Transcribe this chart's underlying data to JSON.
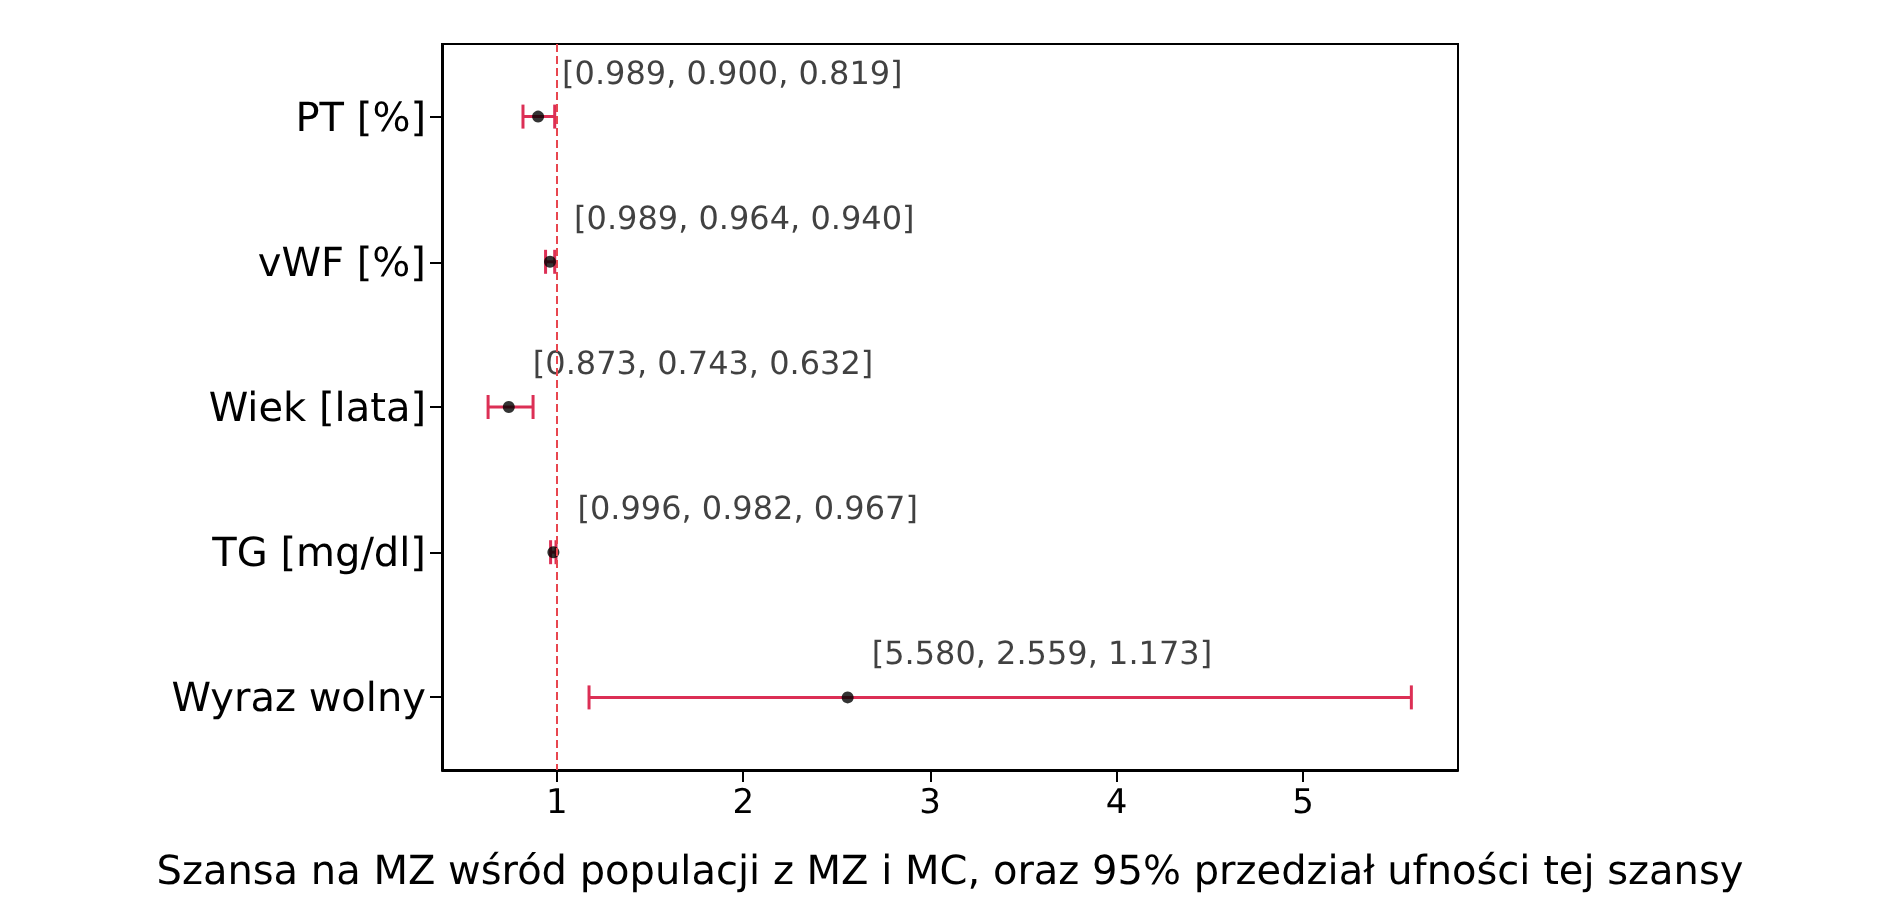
{
  "chart_data": {
    "type": "scatter",
    "orientation": "horizontal",
    "categories": [
      "PT [%]",
      "vWF [%]",
      "Wiek [lata]",
      "TG [mg/dl]",
      "Wyraz wolny"
    ],
    "series": [
      {
        "color": "#000000",
        "values": [
          0.9,
          0.964,
          0.743,
          0.982,
          2.559
        ],
        "errors": [
          [
            0.819,
            0.989
          ],
          [
            0.94,
            0.989
          ],
          [
            0.632,
            0.873
          ],
          [
            0.967,
            0.996
          ],
          [
            1.173,
            5.58
          ]
        ],
        "value_labels": [
          "[0.989, 0.900, 0.819]",
          "[0.989, 0.964, 0.940]",
          "[0.873, 0.743, 0.632]",
          "[0.996, 0.982, 0.967]",
          "[5.580, 2.559, 1.173]"
        ]
      }
    ],
    "xlabel": "Szansa na MZ wśród populacji z MZ i MC, oraz 95% przedział ufności tej szansy",
    "xlim": [
      0.385,
      5.83
    ],
    "xticks": [
      1,
      2,
      3,
      4,
      5
    ],
    "ref_lines": [
      {
        "axis": "x",
        "value": 1,
        "color": "#e8464f",
        "line_style": "dashed"
      }
    ],
    "grid": false,
    "marker": "circle"
  }
}
